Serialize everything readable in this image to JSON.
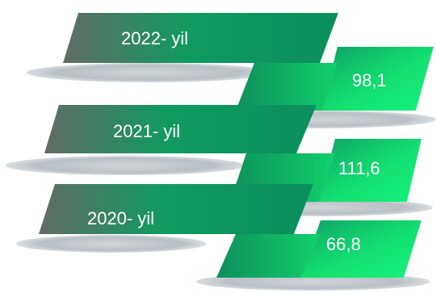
{
  "chart_data": {
    "type": "bar",
    "categories": [
      "2022- yil",
      "2021- yil",
      "2020- yil"
    ],
    "values": [
      "98,1",
      "111,6",
      "66,8"
    ],
    "title": "",
    "xlabel": "",
    "ylabel": ""
  },
  "colors": {
    "band_dark": "#636b66",
    "band_mid": "#109a60",
    "band_bright": "#13e873",
    "shadow": "#b8bfc4"
  }
}
